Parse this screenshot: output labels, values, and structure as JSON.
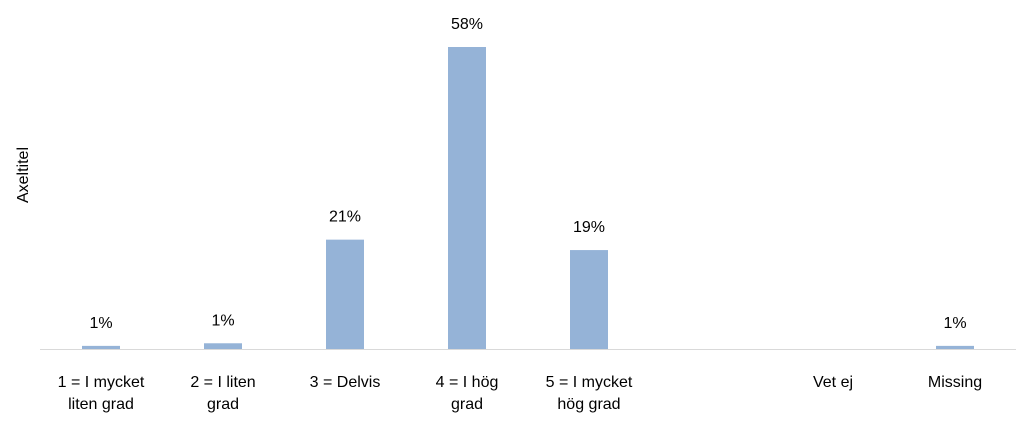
{
  "chart_data": {
    "type": "bar",
    "y_label": "Axeltitel",
    "categories": [
      "1 = I mycket liten grad",
      "2 = I liten grad",
      "3 = Delvis",
      "4 = I hög grad",
      "5 = I mycket hög grad",
      null,
      "Vet ej",
      "Missing"
    ],
    "values": [
      0.6,
      1.1,
      21,
      58,
      19,
      null,
      null,
      0.6
    ],
    "value_labels": [
      "1%",
      "1%",
      "21%",
      "58%",
      "19%",
      null,
      null,
      "1%"
    ],
    "color": "#95b3d7"
  }
}
